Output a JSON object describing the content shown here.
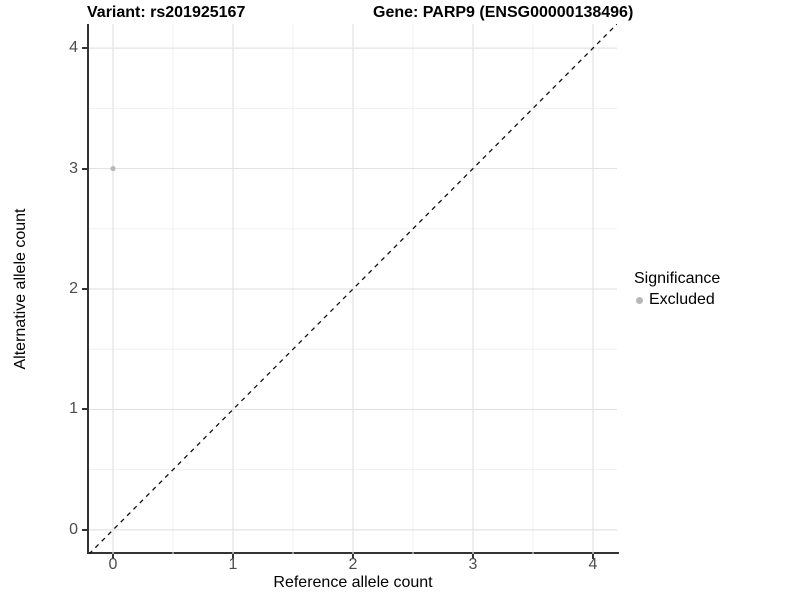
{
  "header": {
    "title_left": "Variant: rs201925167",
    "title_right": "Gene: PARP9 (ENSG00000138496)"
  },
  "chart_data": {
    "type": "scatter",
    "title_left": "Variant: rs201925167",
    "title_right": "Gene: PARP9 (ENSG00000138496)",
    "xlabel": "Reference allele count",
    "ylabel": "Alternative allele count",
    "xlim": [
      -0.2,
      4.2
    ],
    "ylim": [
      -0.2,
      4.2
    ],
    "x_major_ticks": [
      0,
      1,
      2,
      3,
      4
    ],
    "y_major_ticks": [
      0,
      1,
      2,
      3,
      4
    ],
    "x_minor_ticks": [
      0.5,
      1.5,
      2.5,
      3.5
    ],
    "y_minor_ticks": [
      0.5,
      1.5,
      2.5,
      3.5
    ],
    "grid": "major+minor",
    "identity_line": {
      "style": "dashed",
      "x1": -0.2,
      "y1": -0.2,
      "x2": 4.2,
      "y2": 4.2
    },
    "series": [
      {
        "name": "Excluded",
        "color": "#b7b7b7",
        "points": [
          {
            "x": 0,
            "y": 3
          }
        ]
      }
    ],
    "legend": {
      "title": "Significance",
      "position": "right",
      "items": [
        {
          "label": "Excluded",
          "color": "#b7b7b7"
        }
      ]
    },
    "colors": {
      "background": "#ffffff",
      "axis_line": "#333333",
      "tick_label": "#4d4d4d",
      "axis_title": "#000000",
      "grid_major": "#e3e3e3",
      "grid_minor": "#f0f0f0",
      "identity_line": "#111111"
    }
  }
}
